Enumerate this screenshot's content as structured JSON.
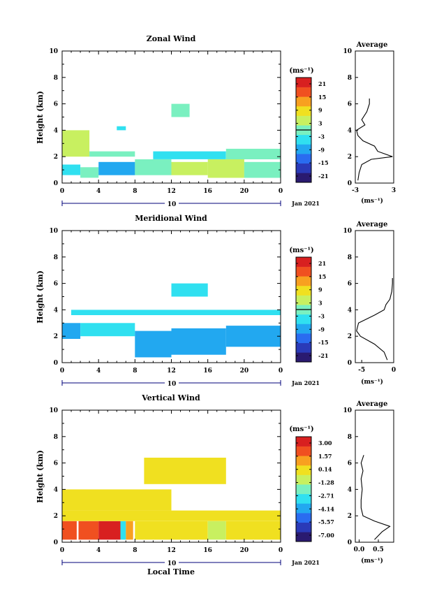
{
  "panels": [
    {
      "title": "Zonal Wind",
      "ylabel": "Height (km)",
      "cbar_unit": "(ms⁻¹)",
      "cbar_ticks": [
        "21",
        "15",
        "9",
        "3",
        "-3",
        "-9",
        "-15",
        "-21"
      ],
      "date_label": "10",
      "month_label": "Jan 2021",
      "avg_title": "Average",
      "avg_xticks": [
        "-3",
        "3"
      ],
      "avg_xlabel": "(ms⁻¹)"
    },
    {
      "title": "Meridional Wind",
      "ylabel": "Height (km)",
      "cbar_unit": "(ms⁻¹)",
      "cbar_ticks": [
        "21",
        "15",
        "9",
        "3",
        "-3",
        "-9",
        "-15",
        "-21"
      ],
      "date_label": "10",
      "month_label": "Jan 2021",
      "avg_title": "Average",
      "avg_xticks": [
        "-5",
        "0"
      ],
      "avg_xlabel": "(ms⁻¹)"
    },
    {
      "title": "Vertical Wind",
      "ylabel": "Height (km)",
      "cbar_unit": "(ms⁻¹)",
      "cbar_ticks": [
        "3.00",
        "1.57",
        "0.14",
        "-1.28",
        "-2.71",
        "-4.14",
        "-5.57",
        "-7.00"
      ],
      "date_label": "10",
      "month_label": "Jan 2021",
      "avg_title": "Average",
      "avg_xticks": [
        "0.0",
        "0.5"
      ],
      "avg_xlabel": "(ms⁻¹)",
      "xlabel": "Local Time"
    }
  ],
  "xticks": [
    "0",
    "4",
    "8",
    "12",
    "16",
    "20",
    "0"
  ],
  "yticks": [
    "0",
    "2",
    "4",
    "6",
    "8",
    "10"
  ],
  "colors": {
    "colormap": [
      "#2a1a70",
      "#2a3ab8",
      "#2a6cf0",
      "#22a8f0",
      "#30e0f0",
      "#7af0c0",
      "#c8f060",
      "#f0e020",
      "#f8a020",
      "#f05020",
      "#d82020"
    ]
  },
  "chart_data": [
    {
      "type": "heatmap",
      "title": "Zonal Wind",
      "xlabel": "",
      "ylabel": "Height (km)",
      "xlim": [
        0,
        24
      ],
      "ylim": [
        0,
        10
      ],
      "clim": [
        -24,
        24
      ],
      "cells": [
        {
          "t0": 0,
          "t1": 2,
          "h0": 0.6,
          "h1": 1.4,
          "v": -6
        },
        {
          "t0": 2,
          "t1": 4,
          "h0": 0.4,
          "h1": 1.2,
          "v": 0
        },
        {
          "t0": 4,
          "t1": 8,
          "h0": 0.6,
          "h1": 1.6,
          "v": -9
        },
        {
          "t0": 8,
          "t1": 12,
          "h0": 0.6,
          "h1": 1.8,
          "v": -2
        },
        {
          "t0": 12,
          "t1": 16,
          "h0": 0.6,
          "h1": 1.6,
          "v": 3
        },
        {
          "t0": 16,
          "t1": 20,
          "h0": 0.4,
          "h1": 1.8,
          "v": 5
        },
        {
          "t0": 20,
          "t1": 24,
          "h0": 0.4,
          "h1": 1.6,
          "v": 2
        },
        {
          "t0": 0,
          "t1": 3,
          "h0": 2.0,
          "h1": 4.0,
          "v": 6
        },
        {
          "t0": 3,
          "t1": 8,
          "h0": 2.0,
          "h1": 2.4,
          "v": 0
        },
        {
          "t0": 10,
          "t1": 18,
          "h0": 1.8,
          "h1": 2.4,
          "v": -4
        },
        {
          "t0": 18,
          "t1": 24,
          "h0": 1.8,
          "h1": 2.6,
          "v": -2
        },
        {
          "t0": 12,
          "t1": 14,
          "h0": 5.0,
          "h1": 6.0,
          "v": -1
        },
        {
          "t0": 6,
          "t1": 7,
          "h0": 4.0,
          "h1": 4.3,
          "v": -4
        }
      ],
      "avg_profile": {
        "xlim": [
          -3,
          3
        ],
        "h": [
          0.2,
          0.8,
          1.4,
          1.8,
          2.0,
          2.4,
          2.8,
          3.2,
          3.6,
          4.0,
          4.4,
          4.8,
          5.4,
          6.0,
          6.4
        ],
        "v": [
          -2.6,
          -2.4,
          -2.0,
          -0.5,
          2.8,
          0.5,
          0.0,
          -1.8,
          -2.6,
          -2.8,
          -1.5,
          -2.0,
          -1.2,
          -0.8,
          -0.8
        ]
      }
    },
    {
      "type": "heatmap",
      "title": "Meridional Wind",
      "xlabel": "",
      "ylabel": "Height (km)",
      "xlim": [
        0,
        24
      ],
      "ylim": [
        0,
        10
      ],
      "clim": [
        -24,
        24
      ],
      "cells": [
        {
          "t0": 0,
          "t1": 2,
          "h0": 1.8,
          "h1": 3.0,
          "v": -9
        },
        {
          "t0": 2,
          "t1": 8,
          "h0": 2.0,
          "h1": 3.0,
          "v": -4
        },
        {
          "t0": 8,
          "t1": 12,
          "h0": 0.4,
          "h1": 2.4,
          "v": -8
        },
        {
          "t0": 12,
          "t1": 18,
          "h0": 0.6,
          "h1": 2.6,
          "v": -10
        },
        {
          "t0": 18,
          "t1": 24,
          "h0": 1.2,
          "h1": 2.8,
          "v": -8
        },
        {
          "t0": 1,
          "t1": 24,
          "h0": 3.6,
          "h1": 4.0,
          "v": -3
        },
        {
          "t0": 12,
          "t1": 16,
          "h0": 5.0,
          "h1": 6.0,
          "v": -6
        }
      ],
      "avg_profile": {
        "xlim": [
          -6,
          0
        ],
        "h": [
          0.2,
          0.8,
          1.4,
          2.0,
          2.4,
          3.0,
          3.6,
          4.0,
          4.4,
          4.8,
          5.4,
          6.0,
          6.4
        ],
        "v": [
          -1.0,
          -1.5,
          -3.0,
          -5.2,
          -5.8,
          -5.5,
          -3.0,
          -1.5,
          -1.2,
          -0.6,
          -0.3,
          -0.2,
          -0.2
        ]
      }
    },
    {
      "type": "heatmap",
      "title": "Vertical Wind",
      "xlabel": "Local Time",
      "ylabel": "Height (km)",
      "xlim": [
        0,
        24
      ],
      "ylim": [
        0,
        10
      ],
      "clim": [
        -7.7,
        3.7
      ],
      "cells": [
        {
          "t0": 0,
          "t1": 1.6,
          "h0": 0.2,
          "h1": 1.6,
          "v": 2.3
        },
        {
          "t0": 1.8,
          "t1": 4,
          "h0": 0.2,
          "h1": 1.6,
          "v": 1.9
        },
        {
          "t0": 4,
          "t1": 6.4,
          "h0": 0.2,
          "h1": 1.6,
          "v": 3.0
        },
        {
          "t0": 6.4,
          "t1": 7.0,
          "h0": 0.2,
          "h1": 1.6,
          "v": -3.4
        },
        {
          "t0": 7.0,
          "t1": 7.8,
          "h0": 0.2,
          "h1": 1.6,
          "v": 1.6
        },
        {
          "t0": 8,
          "t1": 16,
          "h0": 0.2,
          "h1": 1.6,
          "v": 0.2
        },
        {
          "t0": 16,
          "t1": 18,
          "h0": 0.2,
          "h1": 1.6,
          "v": -0.6
        },
        {
          "t0": 18,
          "t1": 24,
          "h0": 0.2,
          "h1": 1.6,
          "v": -0.2
        },
        {
          "t0": 0,
          "t1": 24,
          "h0": 1.6,
          "h1": 2.4,
          "v": 0.5
        },
        {
          "t0": 0,
          "t1": 12,
          "h0": 2.4,
          "h1": 4.0,
          "v": 0.3
        },
        {
          "t0": 9,
          "t1": 18,
          "h0": 4.4,
          "h1": 6.4,
          "v": 0.3
        }
      ],
      "avg_profile": {
        "xlim": [
          -0.1,
          0.9
        ],
        "h": [
          0.2,
          0.8,
          1.2,
          1.6,
          2.0,
          2.6,
          3.2,
          4.0,
          4.8,
          5.4,
          6.0,
          6.6
        ],
        "v": [
          0.4,
          0.6,
          0.8,
          0.4,
          0.1,
          0.05,
          0.05,
          0.08,
          0.05,
          0.1,
          0.05,
          0.12
        ]
      }
    }
  ]
}
